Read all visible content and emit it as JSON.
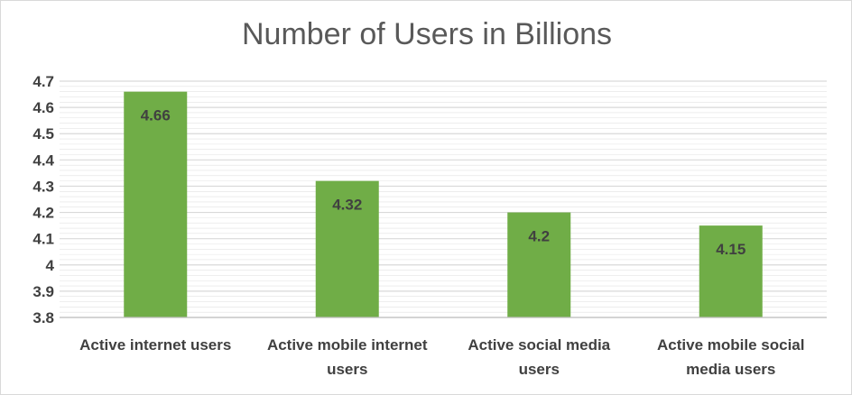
{
  "chart_data": {
    "type": "bar",
    "title": "Number of Users in Billions",
    "xlabel": "",
    "ylabel": "",
    "categories": [
      [
        "Active internet users"
      ],
      [
        "Active mobile internet",
        "users"
      ],
      [
        "Active social media",
        "users"
      ],
      [
        "Active mobile social",
        "media users"
      ]
    ],
    "values": [
      4.66,
      4.32,
      4.2,
      4.15
    ],
    "data_labels": [
      "4.66",
      "4.32",
      "4.2",
      "4.15"
    ],
    "ylim": [
      3.8,
      4.7
    ],
    "yticks": [
      "4.7",
      "4.6",
      "4.5",
      "4.4",
      "4.3",
      "4.2",
      "4.1",
      "4",
      "3.9",
      "3.8"
    ],
    "ytick_values": [
      4.7,
      4.6,
      4.5,
      4.4,
      4.3,
      4.2,
      4.1,
      4.0,
      3.9,
      3.8
    ],
    "grid": true,
    "legend": "none",
    "colors": {
      "bar": "#70ad47",
      "grid": "#d9d9d9",
      "text": "#404040",
      "title": "#595959"
    }
  }
}
